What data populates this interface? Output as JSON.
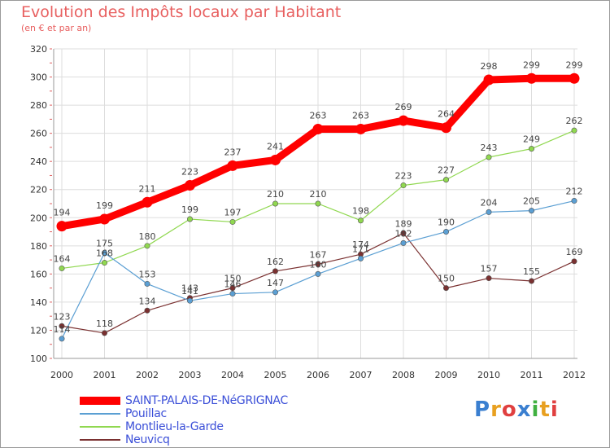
{
  "title": "Evolution des Impôts locaux par Habitant",
  "subtitle": "(en € et par an)",
  "logo": "Proxiti",
  "chart_data": {
    "type": "line",
    "title": "Evolution des Impôts locaux par Habitant",
    "subtitle": "(en € et par an)",
    "xlabel": "",
    "ylabel": "",
    "x": [
      "2000",
      "2001",
      "2002",
      "2003",
      "2004",
      "2005",
      "2006",
      "2007",
      "2008",
      "2009",
      "2010",
      "2011",
      "2012"
    ],
    "ylim": [
      100,
      320
    ],
    "yticks": [
      100,
      120,
      140,
      160,
      180,
      200,
      220,
      240,
      260,
      280,
      300,
      320
    ],
    "grid": true,
    "legend_position": "bottom-left",
    "series": [
      {
        "name": "SAINT-PALAIS-DE-NéGRIGNAC",
        "color": "#ff0000",
        "values": [
          194,
          199,
          211,
          223,
          237,
          241,
          263,
          263,
          269,
          264,
          298,
          299,
          299
        ]
      },
      {
        "name": "Pouillac",
        "color": "#5b9fd3",
        "values": [
          114,
          175,
          153,
          141,
          146,
          147,
          160,
          171,
          182,
          190,
          204,
          205,
          212
        ]
      },
      {
        "name": "Montlieu-la-Garde",
        "color": "#90d850",
        "values": [
          164,
          168,
          180,
          199,
          197,
          210,
          210,
          198,
          223,
          227,
          243,
          249,
          262
        ]
      },
      {
        "name": "Neuvicq",
        "color": "#7a3030",
        "values": [
          123,
          118,
          134,
          143,
          150,
          162,
          167,
          174,
          189,
          150,
          157,
          155,
          169
        ]
      }
    ]
  }
}
